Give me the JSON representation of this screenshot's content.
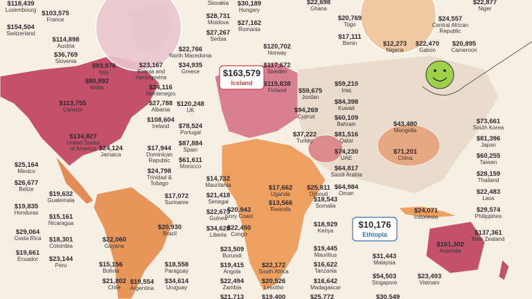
{
  "labels": [
    {
      "value": "$118,439",
      "lines": [
        "Luxembourg"
      ]
    },
    {
      "value": "$103,575",
      "lines": [
        "France"
      ]
    },
    {
      "value": "$154,504",
      "lines": [
        "Switzerland"
      ]
    },
    {
      "value": "$114,898",
      "lines": [
        "Austria"
      ]
    },
    {
      "value": "$36,769",
      "lines": [
        "Slovenia"
      ]
    },
    {
      "value": "$93,976",
      "lines": [
        "Italy"
      ]
    },
    {
      "value": "$80,892",
      "lines": [
        "Malta"
      ]
    },
    {
      "value": "$113,755",
      "lines": [
        "Canada"
      ]
    },
    {
      "value": "$134,827",
      "lines": [
        "United States",
        "of America"
      ]
    },
    {
      "value": "$24,124",
      "lines": [
        "Jamaica"
      ]
    },
    {
      "value": "$25,164",
      "lines": [
        "Mexico"
      ]
    },
    {
      "value": "$26,677",
      "lines": [
        "Belize"
      ]
    },
    {
      "value": "$19,632",
      "lines": [
        "Guatemala"
      ]
    },
    {
      "value": "$19,835",
      "lines": [
        "Honduras"
      ]
    },
    {
      "value": "$15,161",
      "lines": [
        "Nicaragua"
      ]
    },
    {
      "value": "$29,064",
      "lines": [
        "Costa Rica"
      ]
    },
    {
      "value": "$18,301",
      "lines": [
        "Colombia"
      ]
    },
    {
      "value": "$19,661",
      "lines": [
        "Ecuador"
      ]
    },
    {
      "value": "$23,144",
      "lines": [
        "Peru"
      ]
    },
    {
      "value": "$15,156",
      "lines": [
        "Bolivia"
      ]
    },
    {
      "value": "$21,802",
      "lines": [
        "Chile"
      ]
    },
    {
      "value": "$22,060",
      "lines": [
        "Guyana"
      ]
    },
    {
      "value": "$20,930",
      "lines": [
        "Brazil"
      ]
    },
    {
      "value": "$17,944",
      "lines": [
        "Dominican",
        "Republic"
      ]
    },
    {
      "value": "$24,798",
      "lines": [
        "Trinidad &",
        "Tobago"
      ]
    },
    {
      "value": "$17,072",
      "lines": [
        "Suriname"
      ]
    },
    {
      "value": "$18,558",
      "lines": [
        "Paraguay"
      ]
    },
    {
      "value": "$19,554",
      "lines": [
        "Argentina"
      ]
    },
    {
      "value": "$34,614",
      "lines": [
        "Uruguay"
      ]
    },
    {
      "value": "$21,418",
      "lines": [
        "Senegal"
      ]
    },
    {
      "value": "$22,673",
      "lines": [
        "Guinea"
      ]
    },
    {
      "value": "$34,628",
      "lines": [
        "Liberia"
      ]
    },
    {
      "value": "$14,732",
      "lines": [
        "Mauritania"
      ]
    },
    {
      "value": "$20,943",
      "lines": [
        "Ivory Coast"
      ]
    },
    {
      "value": "$22,450",
      "lines": [
        "Congo"
      ]
    },
    {
      "value": "$23,509",
      "lines": [
        "Burundi"
      ]
    },
    {
      "value": "$19,415",
      "lines": [
        "Angola"
      ]
    },
    {
      "value": "$22,494",
      "lines": [
        "Zambia"
      ]
    },
    {
      "value": "$21,713",
      "lines": []
    },
    {
      "value": "$22,172",
      "lines": [
        "South Africa"
      ]
    },
    {
      "value": "$20,526",
      "lines": [
        "Lesotho"
      ]
    },
    {
      "value": "$19,400",
      "lines": []
    },
    {
      "value": "$17,662",
      "lines": [
        "Uganda"
      ]
    },
    {
      "value": "$13,566",
      "lines": [
        "Rwanda"
      ]
    },
    {
      "value": "$25,811",
      "lines": [
        "Djibouti"
      ]
    },
    {
      "value": "$18,543",
      "lines": [
        "Somalia"
      ]
    },
    {
      "value": "$18,929",
      "lines": [
        "Kenya"
      ]
    },
    {
      "value": "$19,445",
      "lines": [
        "Mauritius"
      ]
    },
    {
      "value": "$16,622",
      "lines": [
        "Tanzania"
      ]
    },
    {
      "value": "$16,642",
      "lines": [
        "Madagascar"
      ]
    },
    {
      "value": "$25,772",
      "lines": []
    },
    {
      "value": "$78,524",
      "lines": [
        "Portugal"
      ]
    },
    {
      "value": "$87,884",
      "lines": [
        "Spain"
      ]
    },
    {
      "value": "$61,611",
      "lines": [
        "Morocco"
      ]
    },
    {
      "value": "$120,248",
      "lines": [
        "UK"
      ]
    },
    {
      "value": "$108,604",
      "lines": [
        "Ireland"
      ]
    },
    {
      "value": "$27,788",
      "lines": [
        "Albania"
      ]
    },
    {
      "value": "$24,116",
      "lines": [
        "Montenegro"
      ]
    },
    {
      "value": "$23,167",
      "lines": [
        "Bosnia and",
        "Herzegovina"
      ]
    },
    {
      "value": "$22,766",
      "lines": [
        "North Macedonia"
      ]
    },
    {
      "value": "$34,935",
      "lines": [
        "Greece"
      ]
    },
    {
      "value": "$27,267",
      "lines": [
        "Serbia"
      ]
    },
    {
      "value": "$28,731",
      "lines": [
        "Moldova"
      ]
    },
    {
      "value": "",
      "lines": [
        "Slovakia"
      ]
    },
    {
      "value": "$30,189",
      "lines": [
        "Hungary"
      ]
    },
    {
      "value": "$27,162",
      "lines": [
        "Romania"
      ]
    },
    {
      "value": "$120,702",
      "lines": [
        "Norway"
      ]
    },
    {
      "value": "$117,672",
      "lines": [
        "Sweden"
      ]
    },
    {
      "value": "$115,838",
      "lines": [
        "Finland"
      ]
    },
    {
      "value": "$163,579",
      "lines": [
        "Iceland"
      ]
    },
    {
      "value": "$59,675",
      "lines": [
        "Jordan"
      ]
    },
    {
      "value": "$59,210",
      "lines": [
        "Iraq"
      ]
    },
    {
      "value": "$84,398",
      "lines": [
        "Kuwait"
      ]
    },
    {
      "value": "$94,269",
      "lines": [
        "Cyprus"
      ]
    },
    {
      "value": "$60,109",
      "lines": [
        "Bahrain"
      ]
    },
    {
      "value": "$81,516",
      "lines": [
        "Qatar"
      ]
    },
    {
      "value": "$37,222",
      "lines": [
        "Turkey"
      ]
    },
    {
      "value": "$74,230",
      "lines": [
        "UAE"
      ]
    },
    {
      "value": "$64,817",
      "lines": [
        "Saudi Arabia"
      ]
    },
    {
      "value": "$64,984",
      "lines": [
        "Oman"
      ]
    },
    {
      "value": "$10,176",
      "lines": [
        "Ethiopia"
      ]
    },
    {
      "value": "$22,698",
      "lines": [
        "Ghana"
      ]
    },
    {
      "value": "$20,769",
      "lines": [
        "Togo"
      ]
    },
    {
      "value": "$17,111",
      "lines": [
        "Benin"
      ]
    },
    {
      "value": "$12,273",
      "lines": [
        "Nigeria"
      ]
    },
    {
      "value": "$22,470",
      "lines": [
        "Gabon"
      ]
    },
    {
      "value": "$24,557",
      "lines": [
        "Central African",
        "Republic"
      ]
    },
    {
      "value": "$22,877",
      "lines": [
        "Niger"
      ]
    },
    {
      "value": "$20,895",
      "lines": [
        "Cameroon"
      ]
    },
    {
      "value": "$43,480",
      "lines": [
        "Mongolia"
      ]
    },
    {
      "value": "$71,201",
      "lines": [
        "China"
      ]
    },
    {
      "value": "$73,661",
      "lines": [
        "South Korea"
      ]
    },
    {
      "value": "$81,396",
      "lines": [
        "Japan"
      ]
    },
    {
      "value": "$60,255",
      "lines": [
        "Taiwan"
      ]
    },
    {
      "value": "$28,159",
      "lines": [
        "Thailand"
      ]
    },
    {
      "value": "$22,483",
      "lines": [
        "Laos"
      ]
    },
    {
      "value": "$29,574",
      "lines": [
        "Philippines"
      ]
    },
    {
      "value": "$137,361",
      "lines": [
        "New Zealand"
      ]
    },
    {
      "value": "$161,302",
      "lines": [
        "Australia"
      ]
    },
    {
      "value": "$24,071",
      "lines": [
        "Indonesia"
      ]
    },
    {
      "value": "$31,443",
      "lines": [
        "Malaysia"
      ]
    },
    {
      "value": "$54,503",
      "lines": [
        "Singapore"
      ]
    },
    {
      "value": "$23,493",
      "lines": [
        "Vietnam"
      ]
    },
    {
      "value": "$30,549",
      "lines": []
    }
  ]
}
